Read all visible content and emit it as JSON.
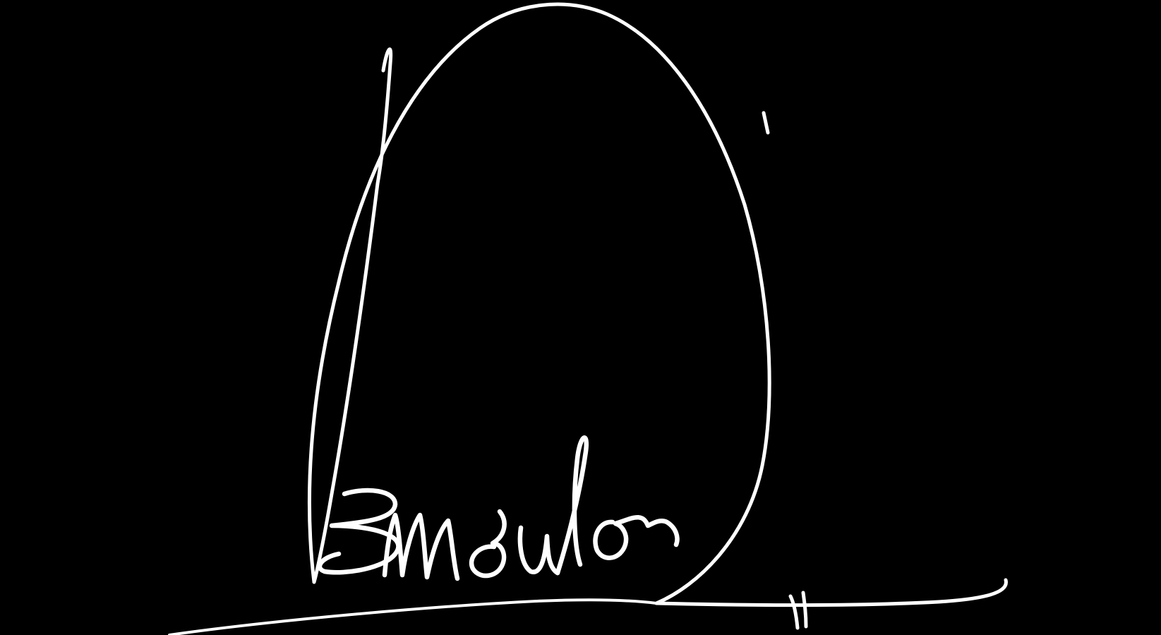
{
  "background_color": "#000000",
  "ink_color": "#ffffff",
  "signature": {
    "kind": "handwritten-signature",
    "handwriting": "Bmmoulor"
  }
}
